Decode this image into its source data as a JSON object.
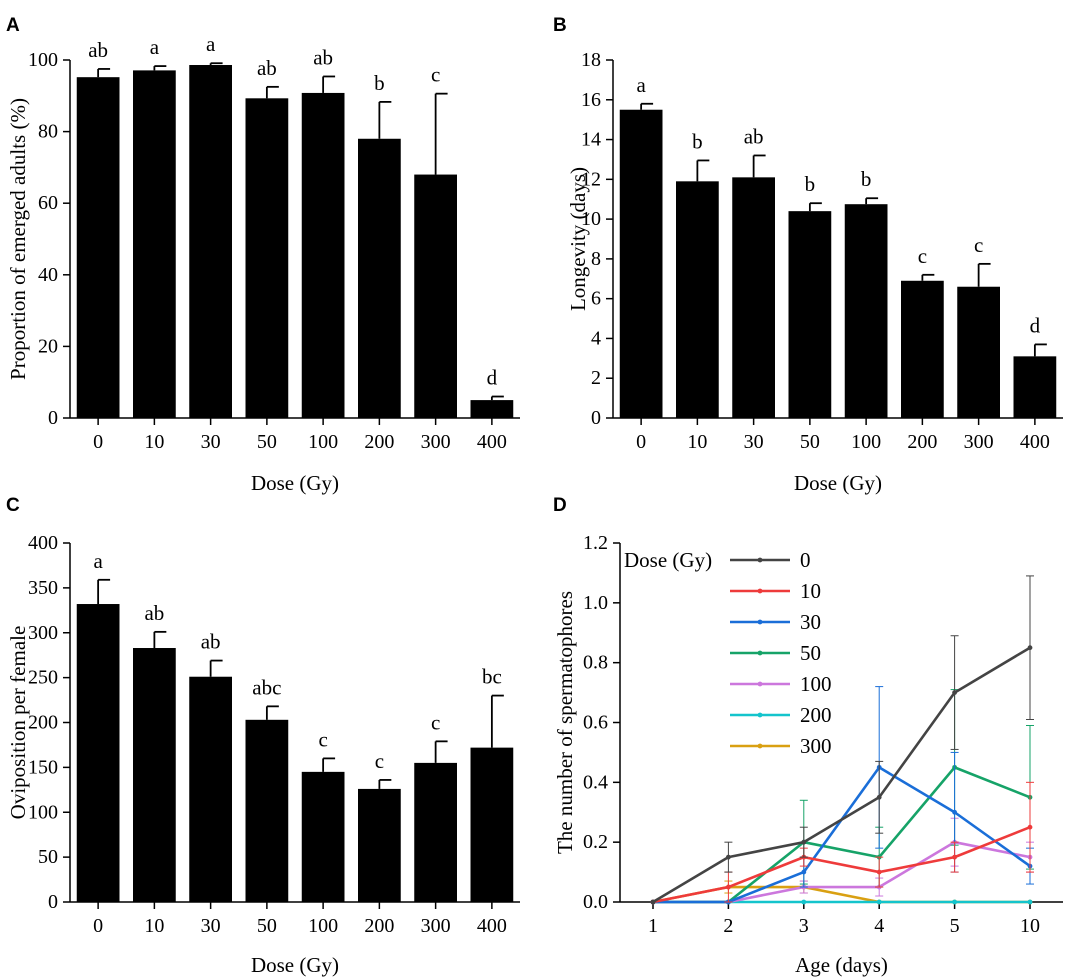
{
  "figure": {
    "panels": [
      "A",
      "B",
      "C",
      "D"
    ]
  },
  "chart_data": [
    {
      "panel": "A",
      "type": "bar",
      "xlabel": "Dose (Gy)",
      "ylabel": "Proportion of emerged adults (%)",
      "ylim": [
        0,
        100
      ],
      "yticks": [
        "0",
        "20",
        "40",
        "60",
        "80",
        "100"
      ],
      "categories": [
        "0",
        "10",
        "30",
        "50",
        "100",
        "200",
        "300",
        "400"
      ],
      "values": [
        95.2,
        97.1,
        98.6,
        89.3,
        90.8,
        78.0,
        68.0,
        5.0
      ],
      "errors": [
        2.3,
        1.2,
        0.5,
        3.2,
        4.6,
        10.3,
        22.6,
        1.0
      ],
      "letters": [
        "ab",
        "a",
        "a",
        "ab",
        "ab",
        "b",
        "c",
        "d"
      ],
      "color": "#000000"
    },
    {
      "panel": "B",
      "type": "bar",
      "xlabel": "Dose (Gy)",
      "ylabel": "Longevity (days)",
      "ylim": [
        0,
        18
      ],
      "yticks": [
        "0",
        "2",
        "4",
        "6",
        "8",
        "10",
        "12",
        "14",
        "16",
        "18"
      ],
      "categories": [
        "0",
        "10",
        "30",
        "50",
        "100",
        "200",
        "300",
        "400"
      ],
      "values": [
        15.5,
        11.9,
        12.1,
        10.4,
        10.75,
        6.9,
        6.6,
        3.1
      ],
      "errors": [
        0.3,
        1.05,
        1.1,
        0.4,
        0.3,
        0.3,
        1.15,
        0.6
      ],
      "letters": [
        "a",
        "b",
        "ab",
        "b",
        "b",
        "c",
        "c",
        "d"
      ],
      "color": "#000000"
    },
    {
      "panel": "C",
      "type": "bar",
      "xlabel": "Dose (Gy)",
      "ylabel": "Oviposition per female",
      "ylim": [
        0,
        400
      ],
      "yticks": [
        "0",
        "50",
        "100",
        "150",
        "200",
        "250",
        "300",
        "350",
        "400"
      ],
      "categories": [
        "0",
        "10",
        "30",
        "50",
        "100",
        "200",
        "300",
        "400"
      ],
      "values": [
        332,
        283,
        251,
        203,
        145,
        126,
        155,
        172
      ],
      "errors": [
        27,
        18,
        18,
        15,
        15,
        10,
        24,
        58
      ],
      "letters": [
        "a",
        "ab",
        "ab",
        "abc",
        "c",
        "c",
        "c",
        "bc"
      ],
      "color": "#000000"
    },
    {
      "panel": "D",
      "type": "line",
      "xlabel": "Age (days)",
      "ylabel": "The number of spermatophores",
      "ylim": [
        0,
        1.2
      ],
      "yticks": [
        "0.0",
        "0.2",
        "0.4",
        "0.6",
        "0.8",
        "1.0",
        "1.2"
      ],
      "categories": [
        "1",
        "2",
        "3",
        "4",
        "5",
        "10"
      ],
      "legend_title": "Dose (Gy)",
      "legend_position": "top-left",
      "series": [
        {
          "name": "0",
          "color": "#444444",
          "values": [
            0,
            0.15,
            0.2,
            0.35,
            0.7,
            0.85
          ],
          "errors": [
            0,
            0.05,
            0.05,
            0.12,
            0.19,
            0.24
          ]
        },
        {
          "name": "10",
          "color": "#ee3b3b",
          "values": [
            0,
            0.05,
            0.15,
            0.1,
            0.15,
            0.25
          ],
          "errors": [
            0,
            0.05,
            0.03,
            0.05,
            0.05,
            0.15
          ]
        },
        {
          "name": "30",
          "color": "#1a6ed8",
          "values": [
            0,
            0,
            0.1,
            0.45,
            0.3,
            0.12
          ],
          "errors": [
            0,
            0,
            0.05,
            0.27,
            0.2,
            0.06
          ]
        },
        {
          "name": "50",
          "color": "#16a368",
          "values": [
            0,
            0,
            0.2,
            0.15,
            0.45,
            0.35
          ],
          "errors": [
            0,
            0,
            0.14,
            0.1,
            0.26,
            0.24
          ]
        },
        {
          "name": "100",
          "color": "#cc77dd",
          "values": [
            0,
            0,
            0.05,
            0.05,
            0.2,
            0.15
          ],
          "errors": [
            0,
            0,
            0.02,
            0.03,
            0.08,
            0.05
          ]
        },
        {
          "name": "200",
          "color": "#14c4cc",
          "values": [
            0,
            0,
            0,
            0,
            0,
            0
          ],
          "errors": [
            0,
            0,
            0,
            0,
            0,
            0
          ]
        },
        {
          "name": "300",
          "color": "#d9a012",
          "values": [
            0,
            0.05,
            0.05,
            0,
            0,
            0
          ],
          "errors": [
            0,
            0.02,
            0.02,
            0,
            0,
            0
          ]
        }
      ]
    }
  ]
}
